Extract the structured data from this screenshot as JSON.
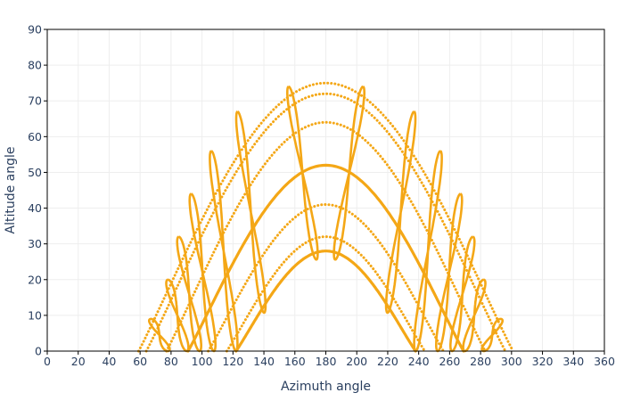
{
  "chart_data": {
    "type": "line",
    "title": "",
    "xlabel": "Azimuth angle",
    "ylabel": "Altitude angle",
    "xlim": [
      0,
      360
    ],
    "ylim": [
      0,
      90
    ],
    "xticks": [
      0,
      20,
      40,
      60,
      80,
      100,
      120,
      140,
      160,
      180,
      200,
      220,
      240,
      260,
      280,
      300,
      320,
      340,
      360
    ],
    "yticks": [
      0,
      10,
      20,
      30,
      40,
      50,
      60,
      70,
      80,
      90
    ],
    "grid": true,
    "legend": "none",
    "colors": {
      "series": "#f4a716",
      "frame": "#000000",
      "grid": "#eeeeee",
      "text": "#2a3f5f"
    },
    "daily_paths_max_altitude": [
      75,
      72,
      64,
      52,
      41,
      32,
      28
    ],
    "daily_paths_horizon_azimuth": [
      [
        59,
        301
      ],
      [
        64,
        296
      ],
      [
        77,
        283
      ],
      [
        91,
        269
      ],
      [
        104,
        256
      ],
      [
        116,
        244
      ],
      [
        122,
        238
      ]
    ],
    "analemma_peaks": [
      {
        "azimuth": 67,
        "altitude": 9
      },
      {
        "azimuth": 78,
        "altitude": 20
      },
      {
        "azimuth": 85,
        "altitude": 32
      },
      {
        "azimuth": 93,
        "altitude": 44
      },
      {
        "azimuth": 106,
        "altitude": 56
      },
      {
        "azimuth": 123,
        "altitude": 67
      },
      {
        "azimuth": 156,
        "altitude": 74
      },
      {
        "azimuth": 204,
        "altitude": 74
      },
      {
        "azimuth": 237,
        "altitude": 67
      },
      {
        "azimuth": 254,
        "altitude": 56
      },
      {
        "azimuth": 267,
        "altitude": 44
      },
      {
        "azimuth": 275,
        "altitude": 32
      },
      {
        "azimuth": 282,
        "altitude": 20
      },
      {
        "azimuth": 293,
        "altitude": 9
      }
    ]
  }
}
